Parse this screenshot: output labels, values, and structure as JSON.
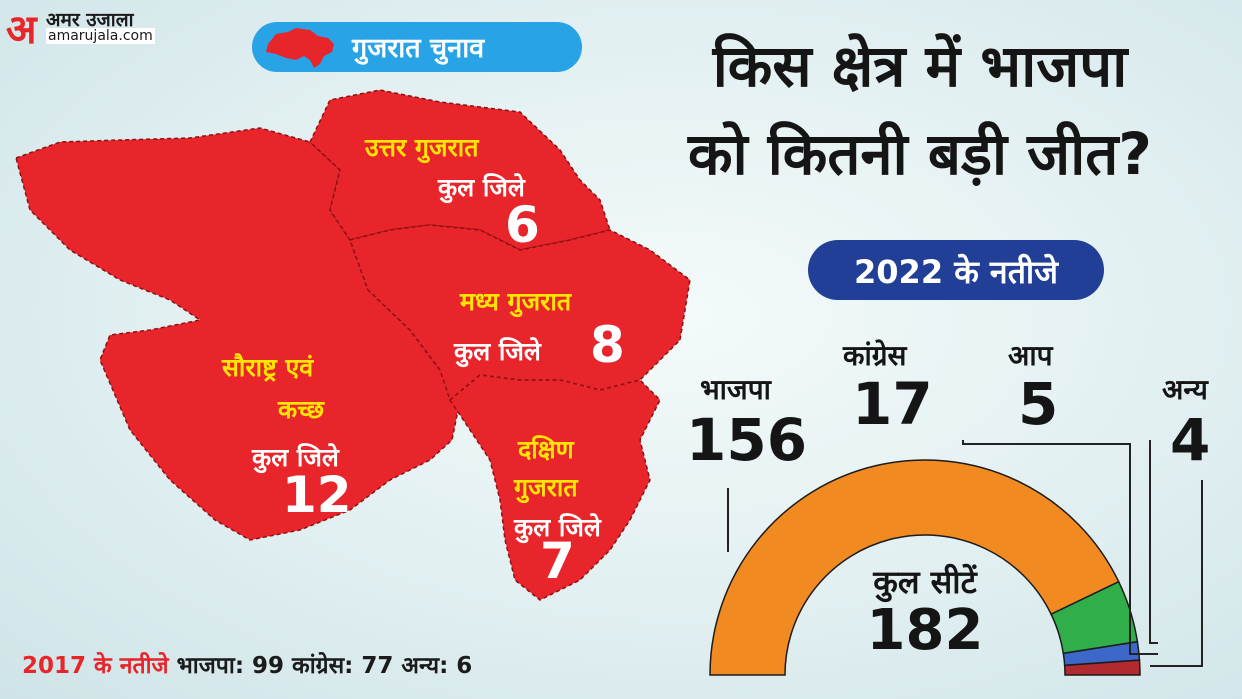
{
  "logo": {
    "letter": "अ",
    "hindi": "अमर उजाला",
    "site": "amarujala.com"
  },
  "tag": {
    "text": "गुजरात चुनाव"
  },
  "headline": {
    "line1": "किस क्षेत्र में भाजपा",
    "line2": "को कितनी बड़ी जीत?"
  },
  "results_pill": {
    "text": "2022 के नतीजे"
  },
  "map": {
    "fill_color": "#e8252a",
    "district_label": "कुल जिले",
    "regions": [
      {
        "name_line1": "उत्तर गुजरात",
        "name_line2": "",
        "districts": "6"
      },
      {
        "name_line1": "मध्य गुजरात",
        "name_line2": "",
        "districts": "8"
      },
      {
        "name_line1": "सौराष्ट्र एवं",
        "name_line2": "कच्छ",
        "districts": "12"
      },
      {
        "name_line1": "दक्षिण",
        "name_line2": "गुजरात",
        "districts": "7"
      }
    ]
  },
  "chart_data": {
    "type": "pie",
    "subtype": "semicircle-donut",
    "title": "2022 के नतीजे",
    "center_label": "कुल सीटें",
    "total": 182,
    "series": [
      {
        "name": "भाजपा",
        "value": 156,
        "color": "#f28a22"
      },
      {
        "name": "कांग्रेस",
        "value": 17,
        "color": "#2fae49"
      },
      {
        "name": "आप",
        "value": 5,
        "color": "#3b68c9"
      },
      {
        "name": "अन्य",
        "value": 4,
        "color": "#b02a2f"
      }
    ]
  },
  "footer": {
    "label": "2017 के नतीजे",
    "text": "भाजपा: 99 कांग्रेस: 77 अन्य: 6"
  }
}
